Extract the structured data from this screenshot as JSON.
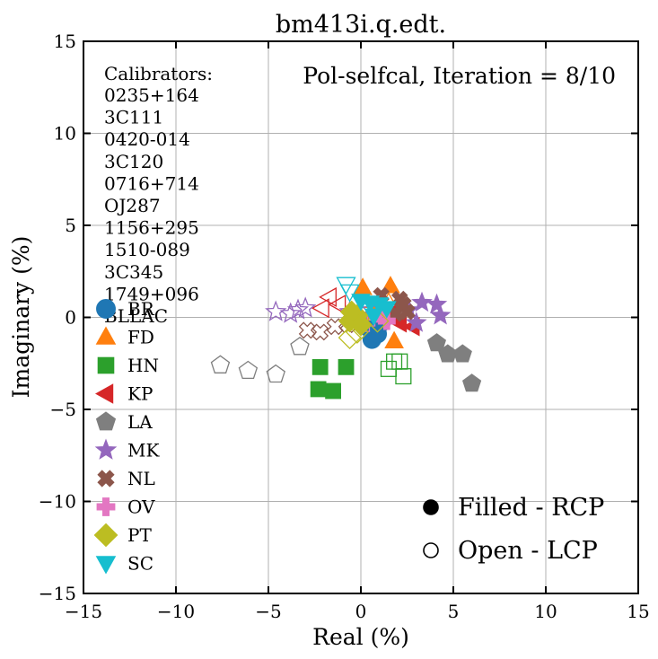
{
  "chart_data": {
    "type": "scatter",
    "title": "bm413i.q.edt.",
    "xlabel": "Real (%)",
    "ylabel": "Imaginary (%)",
    "xlim": [
      -15,
      15
    ],
    "ylim": [
      -15,
      15
    ],
    "xticks": [
      -15,
      -10,
      -5,
      0,
      5,
      10,
      15
    ],
    "yticks": [
      -15,
      -10,
      -5,
      0,
      5,
      10,
      15
    ],
    "xtick_labels": [
      "−15",
      "−10",
      "−5",
      "0",
      "5",
      "10",
      "15"
    ],
    "ytick_labels": [
      "−15",
      "−10",
      "−5",
      "0",
      "5",
      "10",
      "15"
    ],
    "grid": true,
    "annotation": "Pol-selfcal, Iteration = 8/10",
    "calibrators_header": "Calibrators:",
    "calibrators": [
      "0235+164",
      "3C111",
      "0420-014",
      "3C120",
      "0716+714",
      "OJ287",
      "1156+295",
      "1510-089",
      "3C345",
      "1749+096",
      "BLLAC"
    ],
    "fill_legend": [
      {
        "label": "Filled - RCP",
        "filled": true
      },
      {
        "label": "Open - LCP",
        "filled": false
      }
    ],
    "series": [
      {
        "name": "BR",
        "marker": "circle",
        "color": "#1f77b4",
        "rcp": [
          [
            0.6,
            -1.2
          ],
          [
            0.9,
            -0.9
          ],
          [
            0.3,
            -0.5
          ],
          [
            1.1,
            -0.3
          ]
        ],
        "lcp": [
          [
            0.4,
            0.3
          ],
          [
            0.8,
            -0.2
          ]
        ]
      },
      {
        "name": "FD",
        "marker": "triangle-up",
        "color": "#ff7f0e",
        "rcp": [
          [
            0.1,
            1.6
          ],
          [
            1.6,
            1.7
          ],
          [
            1.8,
            -1.3
          ],
          [
            0.9,
            0.6
          ],
          [
            2.3,
            0.7
          ],
          [
            0.5,
            0.2
          ]
        ],
        "lcp": [
          [
            1.5,
            0.8
          ],
          [
            0.3,
            0.9
          ]
        ]
      },
      {
        "name": "HN",
        "marker": "square",
        "color": "#2ca02c",
        "rcp": [
          [
            -2.2,
            -2.7
          ],
          [
            -0.8,
            -2.7
          ],
          [
            -2.3,
            -3.9
          ],
          [
            -1.5,
            -4.0
          ]
        ],
        "lcp": [
          [
            1.5,
            -2.8
          ],
          [
            1.8,
            -2.4
          ],
          [
            2.1,
            -2.4
          ],
          [
            2.3,
            -3.2
          ]
        ]
      },
      {
        "name": "KP",
        "marker": "triangle-left",
        "color": "#d62728",
        "rcp": [
          [
            2.1,
            -0.3
          ],
          [
            2.8,
            -0.5
          ],
          [
            1.6,
            0.2
          ]
        ],
        "lcp": [
          [
            -1.7,
            1.1
          ],
          [
            -2.1,
            0.5
          ],
          [
            -1.2,
            0.7
          ]
        ]
      },
      {
        "name": "LA",
        "marker": "pentagon",
        "color": "#7f7f7f",
        "rcp": [
          [
            4.1,
            -1.4
          ],
          [
            4.7,
            -2.0
          ],
          [
            5.5,
            -2.0
          ],
          [
            6.0,
            -3.6
          ]
        ],
        "lcp": [
          [
            -7.6,
            -2.6
          ],
          [
            -6.1,
            -2.9
          ],
          [
            -4.6,
            -3.1
          ],
          [
            -3.3,
            -1.6
          ]
        ]
      },
      {
        "name": "MK",
        "marker": "star",
        "color": "#9467bd",
        "rcp": [
          [
            3.3,
            0.8
          ],
          [
            4.1,
            0.7
          ],
          [
            4.3,
            0.1
          ],
          [
            2.6,
            0.4
          ],
          [
            3.0,
            -0.3
          ]
        ],
        "lcp": [
          [
            -4.6,
            0.3
          ],
          [
            -3.8,
            0.2
          ],
          [
            -3.4,
            0.4
          ],
          [
            -3.0,
            0.5
          ],
          [
            -0.6,
            0.3
          ],
          [
            -0.1,
            0.1
          ],
          [
            0.6,
            0.4
          ]
        ]
      },
      {
        "name": "NL",
        "marker": "x-cross",
        "color": "#8c564b",
        "rcp": [
          [
            1.1,
            1.2
          ],
          [
            2.1,
            1.0
          ],
          [
            2.3,
            0.7
          ],
          [
            2.5,
            0.3
          ],
          [
            1.9,
            0.2
          ]
        ],
        "lcp": [
          [
            -2.9,
            -0.7
          ],
          [
            -2.2,
            -0.8
          ],
          [
            -1.4,
            -0.5
          ],
          [
            -0.7,
            -0.4
          ]
        ]
      },
      {
        "name": "OV",
        "marker": "plus",
        "color": "#e377c2",
        "rcp": [
          [
            1.4,
            -0.2
          ],
          [
            1.0,
            0.2
          ]
        ],
        "lcp": [
          [
            -0.1,
            -0.1
          ],
          [
            0.3,
            -0.3
          ]
        ]
      },
      {
        "name": "PT",
        "marker": "diamond",
        "color": "#bcbd22",
        "rcp": [
          [
            -0.6,
            -0.2
          ],
          [
            -0.2,
            0.1
          ],
          [
            0.0,
            -0.4
          ],
          [
            -0.5,
            0.3
          ]
        ],
        "lcp": [
          [
            -0.6,
            -1.1
          ],
          [
            -0.2,
            -0.8
          ],
          [
            0.9,
            -0.2
          ]
        ]
      },
      {
        "name": "SC",
        "marker": "triangle-down",
        "color": "#17becf",
        "rcp": [
          [
            0.5,
            0.8
          ],
          [
            1.0,
            0.7
          ],
          [
            0.0,
            0.9
          ],
          [
            1.4,
            0.5
          ],
          [
            0.7,
            0.1
          ]
        ],
        "lcp": [
          [
            -0.8,
            1.8
          ],
          [
            -0.6,
            1.4
          ]
        ]
      }
    ]
  }
}
